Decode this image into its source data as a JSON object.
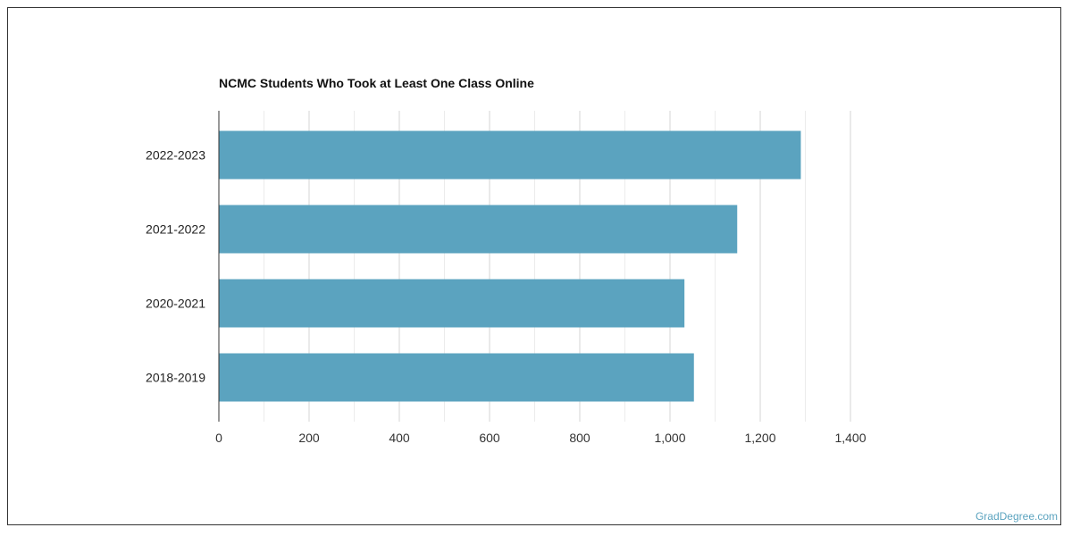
{
  "chart_data": {
    "type": "bar",
    "orientation": "horizontal",
    "title": "NCMC Students Who Took at Least One Class Online",
    "xlabel": "",
    "ylabel": "",
    "categories": [
      "2022-2023",
      "2021-2022",
      "2020-2021",
      "2018-2019"
    ],
    "values": [
      1290,
      1149,
      1032,
      1053
    ],
    "xlim": [
      0,
      1400
    ],
    "xticks": [
      0,
      200,
      400,
      600,
      800,
      1000,
      1200,
      1400
    ],
    "xtick_labels": [
      "0",
      "200",
      "400",
      "600",
      "800",
      "1,000",
      "1,200",
      "1,400"
    ],
    "grid": true,
    "bar_color": "#5ba3bf"
  },
  "watermark": "GradDegree.com"
}
